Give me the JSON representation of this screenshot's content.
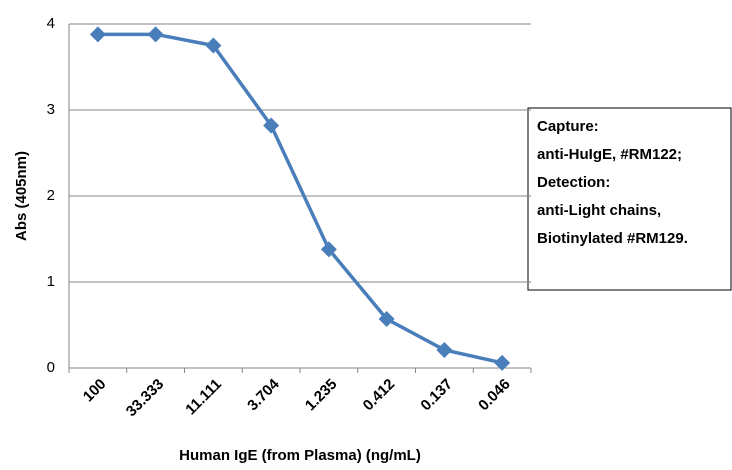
{
  "chart_data": {
    "type": "line",
    "x_label": "Human IgE (from Plasma) (ng/mL)",
    "y_label": "Abs (405nm)",
    "categories": [
      "100",
      "33.333",
      "11.111",
      "3.704",
      "1.235",
      "0.412",
      "0.137",
      "0.046"
    ],
    "series": [
      {
        "color": "#4a7ebb",
        "values": [
          3.88,
          3.88,
          3.75,
          2.82,
          1.38,
          0.57,
          0.21,
          0.06
        ]
      }
    ],
    "ylim": [
      0,
      4
    ],
    "yticks": [
      0,
      1,
      2,
      3,
      4
    ],
    "grid": true,
    "annotation": [
      "Capture:",
      "anti-HuIgE, #RM122;",
      "Detection:",
      "anti-Light chains,",
      "Biotinylated #RM129."
    ]
  }
}
